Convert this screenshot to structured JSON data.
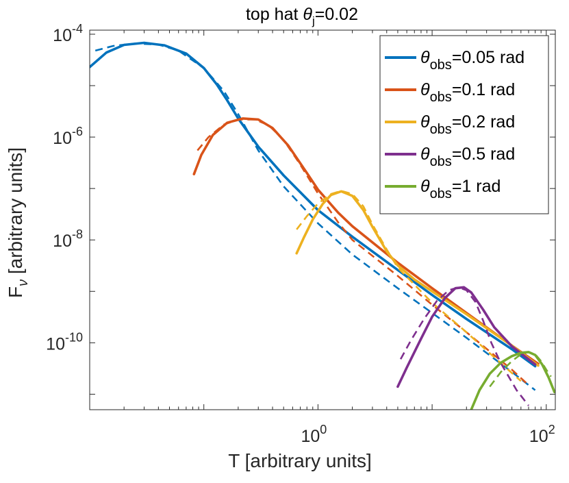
{
  "chart_data": {
    "type": "line",
    "title": "top hat θj=0.02",
    "title_parts": {
      "prefix": "top hat ",
      "symbol": "θ",
      "subscript": "j",
      "suffix": "=0.02"
    },
    "xlabel": "T [arbitrary units]",
    "ylabel": "F_ν [arbitrary units]",
    "ylabel_parts": {
      "main": "F",
      "subscript": "ν",
      "rest": " [arbitrary units]"
    },
    "x_scale": "log",
    "y_scale": "log",
    "xlim": [
      0.01,
      120
    ],
    "ylim": [
      5e-12,
      0.00012
    ],
    "x_ticks": [
      {
        "value": 1,
        "base": "10",
        "exp": "0"
      },
      {
        "value": 100,
        "base": "10",
        "exp": "2"
      }
    ],
    "y_ticks": [
      {
        "value": 1e-10,
        "base": "10",
        "exp": "-10"
      },
      {
        "value": 1e-08,
        "base": "10",
        "exp": "-8"
      },
      {
        "value": 1e-06,
        "base": "10",
        "exp": "-6"
      },
      {
        "value": 0.0001,
        "base": "10",
        "exp": "-4"
      }
    ],
    "legend_position": "top-right",
    "series": [
      {
        "name": "θobs=0.05 rad",
        "legend_symbol": "θ",
        "legend_sub": "obs",
        "legend_rest": "=0.05 rad",
        "color": "#0072BD",
        "solid": [
          [
            0.01,
            2.3e-05
          ],
          [
            0.014,
            4.4e-05
          ],
          [
            0.02,
            6.2e-05
          ],
          [
            0.03,
            6.8e-05
          ],
          [
            0.045,
            6.1e-05
          ],
          [
            0.07,
            4.2e-05
          ],
          [
            0.1,
            2.2e-05
          ],
          [
            0.13,
            1.05e-05
          ],
          [
            0.16,
            5.2e-06
          ],
          [
            0.2,
            2.3e-06
          ],
          [
            0.3,
            6.5e-07
          ],
          [
            0.5,
            1.8e-07
          ],
          [
            1,
            3.8e-08
          ],
          [
            2,
            1.15e-08
          ],
          [
            5,
            2.6e-09
          ],
          [
            10,
            8.5e-10
          ],
          [
            20,
            2.9e-10
          ],
          [
            50,
            7.5e-11
          ],
          [
            80,
            3.5e-11
          ]
        ],
        "dashed": [
          [
            0.0112,
            4.8e-05
          ],
          [
            0.016,
            5.9e-05
          ],
          [
            0.025,
            6.6e-05
          ],
          [
            0.04,
            6.3e-05
          ],
          [
            0.06,
            4.8e-05
          ],
          [
            0.1,
            2.2e-05
          ],
          [
            0.15,
            7.8e-06
          ],
          [
            0.2,
            2.8e-06
          ],
          [
            0.3,
            5.5e-07
          ],
          [
            0.5,
            1.1e-07
          ],
          [
            1,
            2.1e-08
          ],
          [
            2,
            5.2e-09
          ],
          [
            5,
            1.15e-09
          ],
          [
            10,
            3.8e-10
          ],
          [
            20,
            1.25e-10
          ],
          [
            50,
            2.7e-11
          ],
          [
            80,
            1.2e-11
          ]
        ]
      },
      {
        "name": "θobs=0.1 rad",
        "legend_symbol": "θ",
        "legend_sub": "obs",
        "legend_rest": "=0.1 rad",
        "color": "#D95319",
        "solid": [
          [
            0.082,
            1.9e-07
          ],
          [
            0.095,
            4.5e-07
          ],
          [
            0.12,
            1.1e-06
          ],
          [
            0.16,
            1.9e-06
          ],
          [
            0.22,
            2.3e-06
          ],
          [
            0.3,
            2.2e-06
          ],
          [
            0.4,
            1.5e-06
          ],
          [
            0.55,
            6.8e-07
          ],
          [
            0.8,
            2e-07
          ],
          [
            1,
            9.5e-08
          ],
          [
            1.5,
            3.4e-08
          ],
          [
            2,
            1.85e-08
          ],
          [
            5,
            3.6e-09
          ],
          [
            10,
            1.15e-09
          ],
          [
            20,
            3.8e-10
          ],
          [
            50,
            8.8e-11
          ],
          [
            85,
            3.9e-11
          ]
        ],
        "dashed": [
          [
            0.088,
            5.5e-07
          ],
          [
            0.11,
            1e-06
          ],
          [
            0.15,
            1.75e-06
          ],
          [
            0.2,
            2.2e-06
          ],
          [
            0.28,
            2.2e-06
          ],
          [
            0.37,
            1.7e-06
          ],
          [
            0.5,
            8.8e-07
          ],
          [
            0.7,
            2.9e-07
          ],
          [
            1,
            8e-08
          ],
          [
            1.5,
            2.2e-08
          ],
          [
            2,
            1e-08
          ],
          [
            5,
            2e-09
          ],
          [
            10,
            5.5e-10
          ],
          [
            20,
            1.6e-10
          ],
          [
            50,
            3e-11
          ],
          [
            70,
            1.5e-11
          ]
        ]
      },
      {
        "name": "θobs=0.2 rad",
        "legend_symbol": "θ",
        "legend_sub": "obs",
        "legend_rest": "=0.2 rad",
        "color": "#EDB120",
        "solid": [
          [
            0.65,
            5.5e-09
          ],
          [
            0.75,
            1.1e-08
          ],
          [
            0.9,
            2.5e-08
          ],
          [
            1.1,
            5e-08
          ],
          [
            1.3,
            7.5e-08
          ],
          [
            1.6,
            8.8e-08
          ],
          [
            2,
            7.2e-08
          ],
          [
            2.5,
            3.8e-08
          ],
          [
            3,
            1.8e-08
          ],
          [
            4,
            6e-09
          ],
          [
            5,
            3.2e-09
          ],
          [
            7,
            1.7e-09
          ],
          [
            10,
            1e-09
          ],
          [
            20,
            3.6e-10
          ],
          [
            50,
            8.8e-11
          ],
          [
            85,
            3.6e-11
          ]
        ],
        "dashed": [
          [
            0.65,
            1.6e-08
          ],
          [
            0.8,
            2.9e-08
          ],
          [
            1,
            5.1e-08
          ],
          [
            1.3,
            7.8e-08
          ],
          [
            1.6,
            9e-08
          ],
          [
            2,
            7.8e-08
          ],
          [
            2.5,
            4.5e-08
          ],
          [
            3,
            2e-08
          ],
          [
            4,
            6.5e-09
          ],
          [
            5,
            2.9e-09
          ],
          [
            10,
            6e-10
          ],
          [
            20,
            1.6e-10
          ],
          [
            40,
            4e-11
          ],
          [
            60,
            1.8e-11
          ]
        ]
      },
      {
        "name": "θobs=0.5 rad",
        "legend_symbol": "θ",
        "legend_sub": "obs",
        "legend_rest": "=0.5 rad",
        "color": "#7E2F8E",
        "solid": [
          [
            5,
            1.4e-11
          ],
          [
            6,
            3.3e-11
          ],
          [
            8,
            1.2e-10
          ],
          [
            10,
            3.2e-10
          ],
          [
            13,
            7.5e-10
          ],
          [
            16,
            1.15e-09
          ],
          [
            19,
            1.2e-09
          ],
          [
            22,
            9.5e-10
          ],
          [
            28,
            4.4e-10
          ],
          [
            35,
            2e-10
          ],
          [
            50,
            8.5e-11
          ],
          [
            80,
            3.8e-11
          ]
        ],
        "dashed": [
          [
            5.3,
            4.8e-11
          ],
          [
            6.5,
            1.1e-10
          ],
          [
            8.5,
            2.9e-10
          ],
          [
            11,
            6.5e-10
          ],
          [
            14,
            1.05e-09
          ],
          [
            17,
            1.2e-09
          ],
          [
            20,
            1.05e-09
          ],
          [
            24,
            6.2e-10
          ],
          [
            28,
            2.7e-10
          ],
          [
            33,
            1e-10
          ],
          [
            40,
            4e-11
          ],
          [
            55,
            1.2e-11
          ],
          [
            70,
            6e-12
          ]
        ]
      },
      {
        "name": "θobs=1 rad",
        "legend_symbol": "θ",
        "legend_sub": "obs",
        "legend_rest": "=1 rad",
        "color": "#77AC30",
        "solid": [
          [
            22,
            5e-12
          ],
          [
            26,
            1.2e-11
          ],
          [
            32,
            2.5e-11
          ],
          [
            40,
            4.1e-11
          ],
          [
            50,
            5.5e-11
          ],
          [
            60,
            6.4e-11
          ],
          [
            70,
            6.6e-11
          ],
          [
            80,
            5.8e-11
          ],
          [
            92,
            3.8e-11
          ],
          [
            105,
            2.1e-11
          ],
          [
            118,
            1.1e-11
          ]
        ],
        "dashed": [
          [
            32,
            1.4e-11
          ],
          [
            40,
            2.7e-11
          ],
          [
            50,
            4.4e-11
          ],
          [
            60,
            6e-11
          ],
          [
            70,
            6.6e-11
          ],
          [
            80,
            6e-11
          ],
          [
            90,
            4.4e-11
          ],
          [
            100,
            3e-11
          ],
          [
            110,
            2.2e-11
          ]
        ]
      }
    ]
  }
}
